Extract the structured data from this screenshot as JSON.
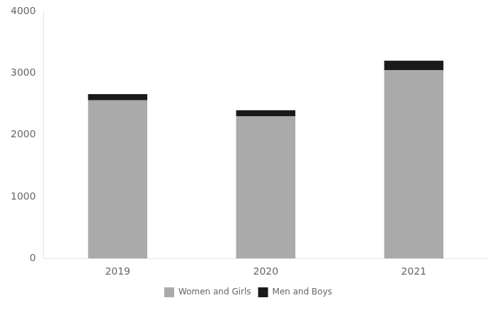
{
  "chart_data": {
    "type": "bar",
    "stacked": true,
    "categories": [
      "2019",
      "2020",
      "2021"
    ],
    "series": [
      {
        "name": "Women and Girls",
        "color": "#AAAAAA",
        "values": [
          2560,
          2300,
          3050
        ]
      },
      {
        "name": "Men and Boys",
        "color": "#1A1A1A",
        "values": [
          100,
          100,
          150
        ]
      }
    ],
    "ylim": [
      0,
      4000
    ],
    "yticks": [
      0,
      1000,
      2000,
      3000,
      4000
    ],
    "grid": false,
    "legend": "bottom"
  }
}
